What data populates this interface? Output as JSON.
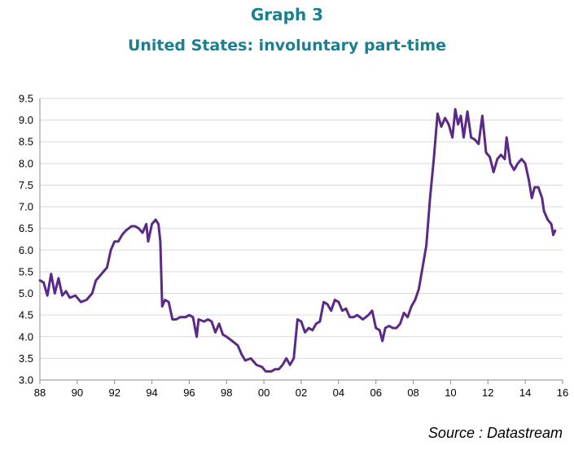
{
  "header": {
    "number": "Graph 3",
    "title": "United States: involuntary part-time",
    "color": "#1a7f8f"
  },
  "source": "Source : Datastream",
  "chart_data": {
    "type": "line",
    "title": "United States: involuntary part-time",
    "xlabel": "",
    "ylabel": "",
    "xlim": [
      1988,
      2016
    ],
    "ylim": [
      3.0,
      9.5
    ],
    "x_ticks": [
      1988,
      1990,
      1992,
      1994,
      1996,
      1998,
      2000,
      2002,
      2004,
      2006,
      2008,
      2010,
      2012,
      2014,
      2016
    ],
    "x_tick_labels": [
      "88",
      "90",
      "92",
      "94",
      "96",
      "98",
      "00",
      "02",
      "04",
      "06",
      "08",
      "10",
      "12",
      "14",
      "16"
    ],
    "y_ticks": [
      3.0,
      3.5,
      4.0,
      4.5,
      5.0,
      5.5,
      6.0,
      6.5,
      7.0,
      7.5,
      8.0,
      8.5,
      9.0,
      9.5
    ],
    "y_tick_labels": [
      "3.0",
      "3.5",
      "4.0",
      "4.5",
      "5.0",
      "5.5",
      "6.0",
      "6.5",
      "7.0",
      "7.5",
      "8.0",
      "8.5",
      "9.0",
      "9.5"
    ],
    "grid": true,
    "legend": "none",
    "series": [
      {
        "color": "#5b2a86",
        "points": [
          [
            1988.0,
            5.3
          ],
          [
            1988.2,
            5.25
          ],
          [
            1988.4,
            4.95
          ],
          [
            1988.6,
            5.45
          ],
          [
            1988.8,
            5.0
          ],
          [
            1989.0,
            5.35
          ],
          [
            1989.2,
            4.95
          ],
          [
            1989.4,
            5.05
          ],
          [
            1989.6,
            4.9
          ],
          [
            1989.9,
            4.95
          ],
          [
            1990.2,
            4.8
          ],
          [
            1990.5,
            4.85
          ],
          [
            1990.8,
            5.0
          ],
          [
            1991.0,
            5.3
          ],
          [
            1991.3,
            5.45
          ],
          [
            1991.6,
            5.6
          ],
          [
            1991.8,
            6.0
          ],
          [
            1992.0,
            6.2
          ],
          [
            1992.2,
            6.2
          ],
          [
            1992.4,
            6.35
          ],
          [
            1992.6,
            6.45
          ],
          [
            1992.9,
            6.55
          ],
          [
            1993.1,
            6.55
          ],
          [
            1993.3,
            6.5
          ],
          [
            1993.5,
            6.4
          ],
          [
            1993.7,
            6.6
          ],
          [
            1993.8,
            6.2
          ],
          [
            1994.0,
            6.6
          ],
          [
            1994.2,
            6.7
          ],
          [
            1994.35,
            6.6
          ],
          [
            1994.45,
            6.2
          ],
          [
            1994.55,
            4.7
          ],
          [
            1994.7,
            4.85
          ],
          [
            1994.9,
            4.8
          ],
          [
            1995.1,
            4.4
          ],
          [
            1995.3,
            4.4
          ],
          [
            1995.5,
            4.45
          ],
          [
            1995.8,
            4.45
          ],
          [
            1996.0,
            4.5
          ],
          [
            1996.2,
            4.45
          ],
          [
            1996.4,
            4.0
          ],
          [
            1996.5,
            4.4
          ],
          [
            1996.8,
            4.35
          ],
          [
            1997.0,
            4.4
          ],
          [
            1997.2,
            4.35
          ],
          [
            1997.4,
            4.1
          ],
          [
            1997.6,
            4.3
          ],
          [
            1997.8,
            4.05
          ],
          [
            1998.0,
            4.0
          ],
          [
            1998.3,
            3.9
          ],
          [
            1998.6,
            3.8
          ],
          [
            1998.8,
            3.6
          ],
          [
            1999.0,
            3.45
          ],
          [
            1999.3,
            3.5
          ],
          [
            1999.6,
            3.35
          ],
          [
            1999.9,
            3.3
          ],
          [
            2000.1,
            3.2
          ],
          [
            2000.4,
            3.2
          ],
          [
            2000.6,
            3.25
          ],
          [
            2000.8,
            3.25
          ],
          [
            2001.0,
            3.35
          ],
          [
            2001.2,
            3.5
          ],
          [
            2001.4,
            3.35
          ],
          [
            2001.6,
            3.5
          ],
          [
            2001.8,
            4.4
          ],
          [
            2002.0,
            4.35
          ],
          [
            2002.2,
            4.1
          ],
          [
            2002.4,
            4.2
          ],
          [
            2002.6,
            4.15
          ],
          [
            2002.8,
            4.3
          ],
          [
            2003.0,
            4.35
          ],
          [
            2003.2,
            4.8
          ],
          [
            2003.4,
            4.75
          ],
          [
            2003.6,
            4.6
          ],
          [
            2003.8,
            4.85
          ],
          [
            2004.0,
            4.8
          ],
          [
            2004.2,
            4.6
          ],
          [
            2004.4,
            4.65
          ],
          [
            2004.6,
            4.45
          ],
          [
            2004.8,
            4.45
          ],
          [
            2005.0,
            4.5
          ],
          [
            2005.3,
            4.4
          ],
          [
            2005.6,
            4.5
          ],
          [
            2005.8,
            4.6
          ],
          [
            2006.0,
            4.2
          ],
          [
            2006.2,
            4.15
          ],
          [
            2006.35,
            3.9
          ],
          [
            2006.5,
            4.2
          ],
          [
            2006.7,
            4.25
          ],
          [
            2006.9,
            4.2
          ],
          [
            2007.1,
            4.2
          ],
          [
            2007.3,
            4.3
          ],
          [
            2007.5,
            4.55
          ],
          [
            2007.7,
            4.45
          ],
          [
            2007.9,
            4.7
          ],
          [
            2008.1,
            4.85
          ],
          [
            2008.3,
            5.1
          ],
          [
            2008.5,
            5.6
          ],
          [
            2008.7,
            6.1
          ],
          [
            2008.9,
            7.2
          ],
          [
            2009.1,
            8.1
          ],
          [
            2009.3,
            9.15
          ],
          [
            2009.5,
            8.85
          ],
          [
            2009.7,
            9.05
          ],
          [
            2009.9,
            8.9
          ],
          [
            2010.1,
            8.6
          ],
          [
            2010.25,
            9.25
          ],
          [
            2010.4,
            8.9
          ],
          [
            2010.55,
            9.1
          ],
          [
            2010.7,
            8.6
          ],
          [
            2010.9,
            9.2
          ],
          [
            2011.1,
            8.6
          ],
          [
            2011.3,
            8.55
          ],
          [
            2011.5,
            8.45
          ],
          [
            2011.7,
            9.1
          ],
          [
            2011.9,
            8.25
          ],
          [
            2012.1,
            8.15
          ],
          [
            2012.3,
            7.8
          ],
          [
            2012.5,
            8.1
          ],
          [
            2012.7,
            8.2
          ],
          [
            2012.9,
            8.1
          ],
          [
            2013.0,
            8.6
          ],
          [
            2013.2,
            8.0
          ],
          [
            2013.4,
            7.85
          ],
          [
            2013.6,
            8.0
          ],
          [
            2013.8,
            8.1
          ],
          [
            2014.0,
            8.0
          ],
          [
            2014.2,
            7.6
          ],
          [
            2014.35,
            7.2
          ],
          [
            2014.5,
            7.45
          ],
          [
            2014.7,
            7.45
          ],
          [
            2014.9,
            7.2
          ],
          [
            2015.0,
            6.9
          ],
          [
            2015.2,
            6.7
          ],
          [
            2015.4,
            6.6
          ],
          [
            2015.5,
            6.35
          ],
          [
            2015.6,
            6.45
          ]
        ]
      }
    ]
  }
}
